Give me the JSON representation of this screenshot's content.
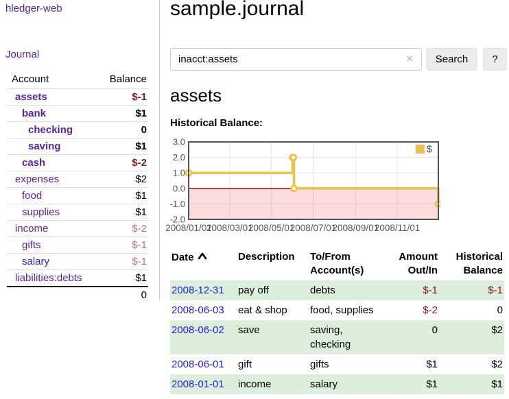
{
  "app": {
    "title": "hledger-web"
  },
  "sidebar": {
    "journal_label": "Journal",
    "accounts": {
      "headers": [
        "Account",
        "Balance"
      ],
      "rows": [
        {
          "account": "assets",
          "balance": "$-1",
          "level": 1,
          "bold": true,
          "negative": true,
          "muted": false,
          "unvisited": false
        },
        {
          "account": "bank",
          "balance": "$1",
          "level": 2,
          "bold": true,
          "negative": false,
          "muted": false,
          "unvisited": false
        },
        {
          "account": "checking",
          "balance": "0",
          "level": 3,
          "bold": true,
          "negative": false,
          "muted": false,
          "unvisited": false
        },
        {
          "account": "saving",
          "balance": "$1",
          "level": 3,
          "bold": true,
          "negative": false,
          "muted": false,
          "unvisited": false
        },
        {
          "account": "cash",
          "balance": "$-2",
          "level": 2,
          "bold": true,
          "negative": true,
          "muted": false,
          "unvisited": false
        },
        {
          "account": "expenses",
          "balance": "$2",
          "level": 1,
          "bold": false,
          "negative": false,
          "muted": false,
          "unvisited": false
        },
        {
          "account": "food",
          "balance": "$1",
          "level": 2,
          "bold": false,
          "negative": false,
          "muted": false,
          "unvisited": false
        },
        {
          "account": "supplies",
          "balance": "$1",
          "level": 2,
          "bold": false,
          "negative": false,
          "muted": false,
          "unvisited": false
        },
        {
          "account": "income",
          "balance": "$-2",
          "level": 1,
          "bold": false,
          "negative": true,
          "muted": true,
          "unvisited": false
        },
        {
          "account": "gifts",
          "balance": "$-1",
          "level": 2,
          "bold": false,
          "negative": true,
          "muted": true,
          "unvisited": false
        },
        {
          "account": "salary",
          "balance": "$-1",
          "level": 2,
          "bold": false,
          "negative": true,
          "muted": true,
          "unvisited": true
        },
        {
          "account": "liabilities:debts",
          "balance": "$1",
          "level": 1,
          "bold": false,
          "negative": false,
          "muted": false,
          "unvisited": false
        }
      ],
      "total": "0"
    }
  },
  "main": {
    "title": "sample.journal",
    "search": {
      "value": "inacct:assets",
      "clear_label": "×",
      "button_label": "Search",
      "help_label": "?"
    },
    "account_heading": "assets",
    "chart_heading": "Historical Balance:",
    "register": {
      "headers": [
        "Date",
        "Description",
        "To/From Account(s)",
        "Amount Out/In",
        "Historical Balance"
      ],
      "rows": [
        {
          "date": "2008-12-31",
          "description": "pay off",
          "accounts": "debts",
          "amount": "$-1",
          "amount_negative": true,
          "balance": "$-1",
          "balance_negative": true,
          "shaded": true
        },
        {
          "date": "2008-06-03",
          "description": "eat & shop",
          "accounts": "food, supplies",
          "amount": "$-2",
          "amount_negative": true,
          "balance": "0",
          "balance_negative": false,
          "shaded": false
        },
        {
          "date": "2008-06-02",
          "description": "save",
          "accounts": "saving, checking",
          "amount": "0",
          "amount_negative": false,
          "balance": "$2",
          "balance_negative": false,
          "shaded": true
        },
        {
          "date": "2008-06-01",
          "description": "gift",
          "accounts": "gifts",
          "amount": "$1",
          "amount_negative": false,
          "balance": "$2",
          "balance_negative": false,
          "shaded": false
        },
        {
          "date": "2008-01-01",
          "description": "income",
          "accounts": "salary",
          "amount": "$1",
          "amount_negative": false,
          "balance": "$1",
          "balance_negative": false,
          "shaded": true
        }
      ]
    }
  },
  "chart_data": {
    "type": "line",
    "title": "Historical Balance:",
    "step": true,
    "series": [
      {
        "name": "$",
        "color": "#edc240",
        "points": [
          {
            "date": "2008-01-01",
            "day": 0,
            "y": 1
          },
          {
            "date": "2008-06-01",
            "day": 152,
            "y": 2
          },
          {
            "date": "2008-06-02",
            "day": 153,
            "y": 2
          },
          {
            "date": "2008-06-03",
            "day": 154,
            "y": 0
          },
          {
            "date": "2008-12-31",
            "day": 365,
            "y": -1
          }
        ]
      }
    ],
    "xticks": [
      {
        "day": 0,
        "label": "2008/01/01"
      },
      {
        "day": 60,
        "label": "2008/03/01"
      },
      {
        "day": 121,
        "label": "2008/05/01"
      },
      {
        "day": 182,
        "label": "2008/07/01"
      },
      {
        "day": 244,
        "label": "2008/09/01"
      },
      {
        "day": 305,
        "label": "2008/11/01"
      }
    ],
    "yticks": [
      3.0,
      2.0,
      1.0,
      0.0,
      -1.0,
      -2.0
    ],
    "xlim_days": [
      0,
      365
    ],
    "ylim": [
      -2,
      3
    ],
    "grid": true,
    "legend_position": "top-right",
    "negative_region_fill": "#fbdcdc",
    "zero_line_color": "#990000",
    "border_color": "#545454",
    "tick_label_color": "#545454"
  },
  "colors": {
    "link_purple": "#56259e",
    "link_blue": "#2222dd",
    "negative_red": "#8c1616",
    "negative_muted": "#bb7474",
    "row_stripe_green": "#ddeedd",
    "series_yellow": "#edc240"
  }
}
